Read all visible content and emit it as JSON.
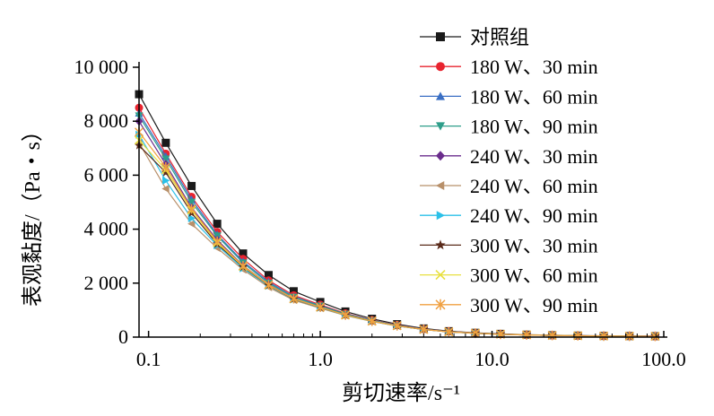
{
  "chart_data": {
    "type": "line",
    "xlabel": "剪切速率/s⁻¹",
    "ylabel": "表观黏度/（Pa・s）",
    "xscale": "log",
    "xlim": [
      0.088,
      100
    ],
    "ylim": [
      0,
      10000
    ],
    "xticks": [
      "0.1",
      "1.0",
      "10.0",
      "100.0"
    ],
    "yticks": [
      "0",
      "2 000",
      "4 000",
      "6 000",
      "8 000",
      "10 000"
    ],
    "x": [
      0.088,
      0.126,
      0.178,
      0.251,
      0.355,
      0.5,
      0.7,
      1.0,
      1.4,
      2.0,
      2.8,
      4.0,
      5.6,
      8.0,
      11.2,
      15.9,
      22.4,
      31.6,
      44.7,
      63.1,
      89.1
    ],
    "legend_position": "top-right",
    "series": [
      {
        "name": "对照组",
        "color": "#1a1a1a",
        "marker": "square",
        "values": [
          9000,
          7200,
          5600,
          4200,
          3100,
          2300,
          1700,
          1300,
          950,
          680,
          480,
          320,
          220,
          160,
          120,
          90,
          70,
          55,
          45,
          40,
          35
        ]
      },
      {
        "name": "180 W、30 min",
        "color": "#e8242f",
        "marker": "circle",
        "values": [
          8500,
          6800,
          5200,
          3900,
          2900,
          2100,
          1550,
          1200,
          880,
          630,
          450,
          300,
          210,
          150,
          110,
          85,
          65,
          52,
          43,
          38,
          33
        ]
      },
      {
        "name": "180 W、60 min",
        "color": "#3a6fc4",
        "marker": "triangle-up",
        "values": [
          8300,
          6700,
          5100,
          3800,
          2800,
          2050,
          1500,
          1170,
          860,
          620,
          440,
          295,
          205,
          148,
          108,
          83,
          64,
          51,
          42,
          37,
          32
        ]
      },
      {
        "name": "180 W、90 min",
        "color": "#2e9e8a",
        "marker": "triangle-down",
        "values": [
          8200,
          6600,
          5000,
          3750,
          2750,
          2000,
          1480,
          1150,
          850,
          610,
          430,
          290,
          200,
          145,
          106,
          82,
          63,
          50,
          41,
          36,
          31
        ]
      },
      {
        "name": "240 W、30 min",
        "color": "#6a2c8c",
        "marker": "diamond",
        "values": [
          8000,
          6400,
          4800,
          3600,
          2650,
          1950,
          1430,
          1110,
          820,
          590,
          420,
          285,
          195,
          142,
          104,
          80,
          62,
          49,
          40,
          35,
          30
        ]
      },
      {
        "name": "240 W、60 min",
        "color": "#b8906a",
        "marker": "triangle-left",
        "values": [
          7200,
          5500,
          4200,
          3300,
          2500,
          1850,
          1370,
          1070,
          800,
          580,
          410,
          280,
          192,
          140,
          102,
          79,
          61,
          48,
          40,
          35,
          30
        ]
      },
      {
        "name": "240 W、90 min",
        "color": "#2bc0e8",
        "marker": "triangle-right",
        "values": [
          7500,
          5800,
          4400,
          3400,
          2550,
          1900,
          1400,
          1090,
          810,
          585,
          415,
          282,
          193,
          141,
          103,
          79,
          61,
          48,
          40,
          35,
          30
        ]
      },
      {
        "name": "300 W、30 min",
        "color": "#5a2a1a",
        "marker": "star",
        "values": [
          7100,
          6100,
          4600,
          3450,
          2600,
          1920,
          1410,
          1100,
          815,
          588,
          418,
          283,
          194,
          141,
          103,
          80,
          62,
          49,
          40,
          35,
          30
        ]
      },
      {
        "name": "300 W、60 min",
        "color": "#e8e040",
        "marker": "x",
        "values": [
          7300,
          6200,
          4700,
          3500,
          2620,
          1930,
          1420,
          1105,
          818,
          590,
          420,
          284,
          195,
          142,
          104,
          80,
          62,
          49,
          40,
          35,
          30
        ]
      },
      {
        "name": "300 W、90 min",
        "color": "#f0a040",
        "marker": "asterisk",
        "values": [
          7600,
          6300,
          4750,
          3550,
          2640,
          1940,
          1425,
          1108,
          820,
          592,
          421,
          285,
          196,
          143,
          104,
          80,
          62,
          49,
          40,
          35,
          30
        ]
      }
    ]
  }
}
